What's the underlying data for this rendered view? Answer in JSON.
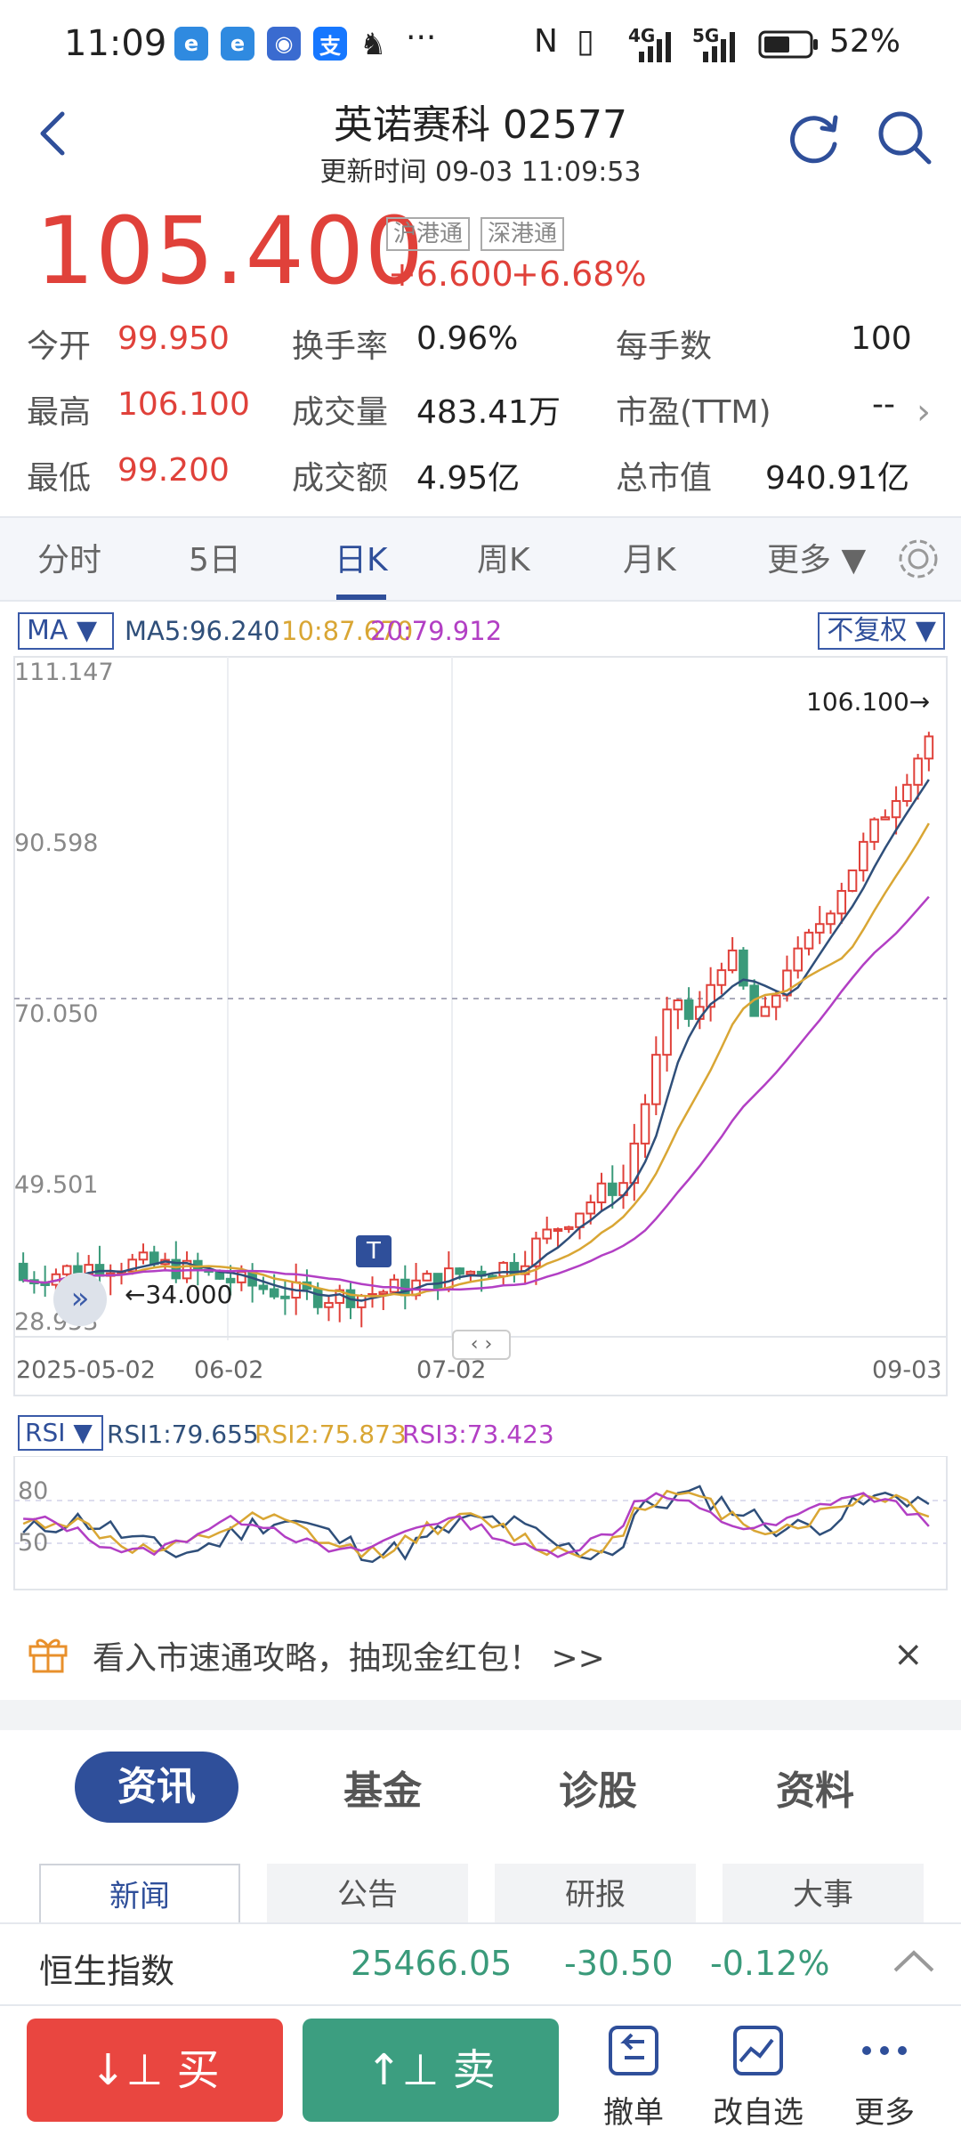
{
  "status_bar": {
    "time": "11:09",
    "network_4g": "4G",
    "network_5g": "5G",
    "battery_pct": "52%"
  },
  "header": {
    "title": "英诺赛科 02577",
    "subtitle": "更新时间 09-03 11:09:53",
    "back_icon": "chevron-left-icon",
    "refresh_icon": "refresh-icon",
    "search_icon": "search-icon"
  },
  "quote": {
    "price": "105.400",
    "tags": [
      "沪港通",
      "深港通"
    ],
    "change": "+6.600",
    "change_pct": "+6.68%"
  },
  "stats": [
    {
      "label": "今开",
      "value": "99.950",
      "color": "red"
    },
    {
      "label": "换手率",
      "value": "0.96%",
      "color": "black"
    },
    {
      "label": "每手数",
      "value": "100",
      "color": "black"
    },
    {
      "label": "最高",
      "value": "106.100",
      "color": "red"
    },
    {
      "label": "成交量",
      "value": "483.41万",
      "color": "black"
    },
    {
      "label": "市盈(TTM)",
      "value": "--",
      "color": "black"
    },
    {
      "label": "最低",
      "value": "99.200",
      "color": "red"
    },
    {
      "label": "成交额",
      "value": "4.95亿",
      "color": "black"
    },
    {
      "label": "总市值",
      "value": "940.91亿",
      "color": "black"
    }
  ],
  "chart_tabs": [
    "分时",
    "5日",
    "日K",
    "周K",
    "月K",
    "更多 ▼"
  ],
  "chart_tab_active": "日K",
  "kline": {
    "ma_selector": "MA ▼",
    "ma5": "MA5:96.240",
    "ma10": "10:87.670",
    "ma20": "20:79.912",
    "adjust_selector": "不复权 ▼",
    "y_labels": [
      "111.147",
      "90.598",
      "70.050",
      "49.501",
      "28.953"
    ],
    "x_labels": [
      "2025-05-02",
      "06-02",
      "07-02",
      "09-03"
    ],
    "high_marker": "106.100→",
    "low_marker": "←34.000",
    "event_marker": "T",
    "pan_handle": "‹ ›",
    "colors": {
      "up": "#e0413a",
      "down": "#3a9a7a",
      "ma5": "#2f4f7a",
      "ma10": "#d9a634",
      "ma20": "#b23fc4"
    }
  },
  "rsi": {
    "selector": "RSI ▼",
    "rsi1": "RSI1:79.655",
    "rsi2": "RSI2:75.873",
    "rsi3": "RSI3:73.423",
    "y_labels": [
      "80",
      "50"
    ]
  },
  "banner": {
    "text": "看入市速通攻略，抽现金红包！ >>",
    "icon": "gift-icon",
    "close": "×"
  },
  "info_tabs": [
    "资讯",
    "基金",
    "诊股",
    "资料"
  ],
  "sub_tabs": [
    "新闻",
    "公告",
    "研报",
    "大事"
  ],
  "index": {
    "name": "恒生指数",
    "value": "25466.05",
    "change": "-30.50",
    "change_pct": "-0.12%",
    "expand_icon": "chevron-up-icon"
  },
  "bottom_bar": {
    "buy": "买",
    "sell": "卖",
    "cancel": "撤单",
    "edit_watchlist": "改自选",
    "more": "更多"
  }
}
